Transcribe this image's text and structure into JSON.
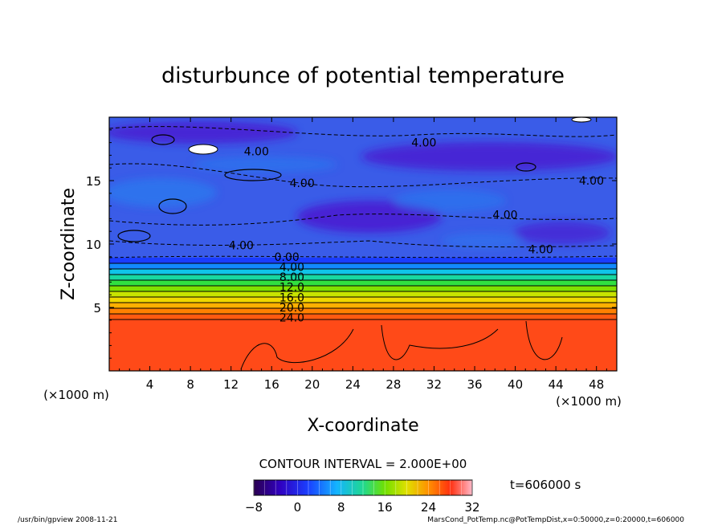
{
  "chart_data": {
    "type": "heatmap",
    "title": "disturbunce of potential temperature",
    "xlabel": "X-coordinate",
    "ylabel": "Z-coordinate",
    "x_unit_left": "(×1000 m)",
    "x_unit_right": "(×1000 m)",
    "xlim": [
      0,
      50
    ],
    "ylim": [
      0,
      20
    ],
    "xticks": [
      4,
      8,
      12,
      16,
      20,
      24,
      28,
      32,
      36,
      40,
      44,
      48
    ],
    "xtick_labels": [
      "4",
      "8",
      "12",
      "16",
      "20",
      "24",
      "28",
      "32",
      "36",
      "40",
      "44",
      "48"
    ],
    "yticks": [
      5,
      10,
      15
    ],
    "ytick_labels": [
      "5",
      "10",
      "15"
    ],
    "contour_interval_text": "CONTOUR INTERVAL = 2.000E+00",
    "contour_labels": [
      {
        "text": "0.00",
        "x": 17.5,
        "z": 9.0
      },
      {
        "text": "4.00",
        "x": 18.0,
        "z": 8.2
      },
      {
        "text": "8.00",
        "x": 18.0,
        "z": 7.4
      },
      {
        "text": "12.0",
        "x": 18.0,
        "z": 6.6
      },
      {
        "text": "16.0",
        "x": 18.0,
        "z": 5.8
      },
      {
        "text": "20.0",
        "x": 18.0,
        "z": 5.0
      },
      {
        "text": "24.0",
        "x": 18.0,
        "z": 4.2
      },
      {
        "text": "4.00",
        "x": 14.5,
        "z": 17.3
      },
      {
        "text": "4.00",
        "x": 19.0,
        "z": 14.8
      },
      {
        "text": "4.00",
        "x": 31.0,
        "z": 18.0
      },
      {
        "text": "4.00",
        "x": 47.5,
        "z": 15.0
      },
      {
        "text": "4.00",
        "x": 39.0,
        "z": 12.3
      },
      {
        "text": "4.00",
        "x": 13.0,
        "z": 9.9
      },
      {
        "text": "4.00",
        "x": 42.5,
        "z": 9.6
      }
    ],
    "colorbar": {
      "min": -8,
      "max": 32,
      "ticks": [
        -8,
        0,
        8,
        16,
        24,
        32
      ],
      "tick_labels": [
        "−8",
        "0",
        "8",
        "16",
        "24",
        "32"
      ]
    },
    "time_label": "t=606000 s",
    "colors": {
      "layer_top": "#ff3f1c",
      "layer_bottom": "#ff4a12",
      "upper_base": "#3a5ce8",
      "upper_dark": "#4a1bd0",
      "upper_light": "#2a7cf0"
    }
  },
  "footer": {
    "left": "/usr/bin/gpview   2008-11-21",
    "right": "MarsCond_PotTemp.nc@PotTempDist,x=0:50000,z=0:20000,t=606000"
  }
}
